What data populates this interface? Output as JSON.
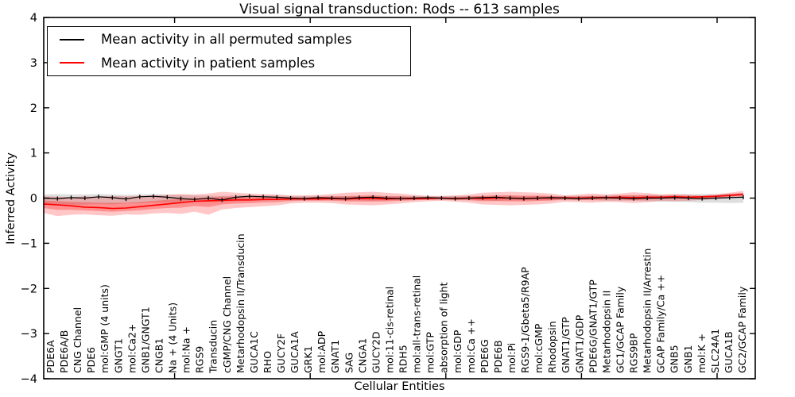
{
  "figure": {
    "title": "Visual signal transduction: Rods -- 613 samples",
    "xlabel": "Cellular Entities",
    "ylabel": "Inferred Activity"
  },
  "legend": {
    "items": [
      {
        "label": "Mean activity in all permuted samples",
        "color": "#000000"
      },
      {
        "label": "Mean activity in patient samples",
        "color": "#ff0000"
      }
    ]
  },
  "chart_data": {
    "type": "line",
    "title": "Visual signal transduction: Rods -- 613 samples",
    "xlabel": "Cellular Entities",
    "ylabel": "Inferred Activity",
    "ylim": [
      -4,
      4
    ],
    "yticks": [
      -4,
      -3,
      -2,
      -1,
      0,
      1,
      2,
      3,
      4
    ],
    "xtick_positions": [
      10,
      20,
      30,
      40,
      50
    ],
    "grid": false,
    "legend_position": "upper left",
    "categories": [
      "PDE6A",
      "PDE6A/B",
      "CNG Channel",
      "PDE6",
      "mol:GMP (4 units)",
      "GNGT1",
      "mol:Ca2+",
      "GNB1/GNGT1",
      "CNGB1",
      "Na + (4 Units)",
      "mol:Na +",
      "RGS9",
      "Transducin",
      "cGMP/CNG Channel",
      "Metarhodopsin II/Transducin",
      "GUCA1C",
      "RHO",
      "GUCY2F",
      "GUCA1A",
      "GRK1",
      "mol:ADP",
      "GNAT1",
      "SAG",
      "CNGA1",
      "GUCY2D",
      "mol:11-cis-retinal",
      "RDH5",
      "mol:all-trans-retinal",
      "mol:GTP",
      "absorption of light",
      "mol:GDP",
      "mol:Ca ++",
      "PDE6G",
      "PDE6B",
      "mol:Pi",
      "RGS9-1/Gbeta5/R9AP",
      "mol:cGMP",
      "Rhodopsin",
      "GNAT1/GTP",
      "GNAT1/GDP",
      "PDE6G/GNAT1/GTP",
      "Metarhodopsin II",
      "GC1/GCAP Family",
      "RGS9BP",
      "Metarhodopsin II/Arrestin",
      "GCAP Family/Ca ++",
      "GNB5",
      "GNB1",
      "mol:K +",
      "SLC24A1",
      "GUCA1B",
      "GC2/GCAP Family"
    ],
    "series": [
      {
        "name": "Mean activity in all permuted samples",
        "color": "#000000",
        "marker": "|",
        "values": [
          0.0,
          -0.01,
          0.01,
          0.0,
          0.03,
          0.01,
          -0.02,
          0.03,
          0.04,
          0.02,
          -0.01,
          -0.03,
          0.0,
          -0.04,
          0.02,
          0.04,
          0.03,
          0.02,
          0.0,
          -0.01,
          0.01,
          0.0,
          -0.01,
          0.01,
          0.02,
          0.0,
          -0.01,
          0.0,
          0.01,
          0.0,
          -0.01,
          0.0,
          0.01,
          0.02,
          0.0,
          -0.01,
          0.0,
          0.01,
          0.0,
          -0.01,
          0.0,
          0.01,
          0.0,
          -0.01,
          0.0,
          0.0,
          0.01,
          0.0,
          -0.01,
          0.0,
          0.01,
          0.02
        ]
      },
      {
        "name": "Mean activity in patient samples",
        "color": "#ff0000",
        "marker": "none",
        "values": [
          -0.13,
          -0.15,
          -0.17,
          -0.2,
          -0.21,
          -0.23,
          -0.22,
          -0.19,
          -0.16,
          -0.13,
          -0.1,
          -0.07,
          -0.06,
          -0.05,
          -0.04,
          -0.04,
          -0.03,
          -0.03,
          -0.02,
          -0.02,
          -0.02,
          -0.01,
          -0.02,
          -0.01,
          -0.01,
          -0.02,
          -0.01,
          -0.01,
          -0.01,
          0.0,
          -0.01,
          0.0,
          -0.01,
          0.0,
          0.0,
          -0.01,
          0.0,
          0.0,
          0.01,
          0.0,
          0.01,
          0.01,
          0.02,
          0.01,
          0.02,
          0.02,
          0.03,
          0.02,
          0.03,
          0.04,
          0.06,
          0.08
        ]
      }
    ],
    "bands": [
      {
        "name": "permuted-samples-range",
        "color": "#000000",
        "opacity": 0.13,
        "upper": [
          0.08,
          0.09,
          0.08,
          0.08,
          0.09,
          0.08,
          0.07,
          0.08,
          0.09,
          0.08,
          0.07,
          0.06,
          0.06,
          0.05,
          0.06,
          0.07,
          0.06,
          0.06,
          0.05,
          0.05,
          0.05,
          0.05,
          0.05,
          0.05,
          0.06,
          0.05,
          0.05,
          0.05,
          0.05,
          0.04,
          0.05,
          0.05,
          0.05,
          0.06,
          0.05,
          0.05,
          0.05,
          0.05,
          0.05,
          0.05,
          0.05,
          0.06,
          0.06,
          0.06,
          0.07,
          0.07,
          0.08,
          0.08,
          0.09,
          0.09,
          0.1,
          0.1
        ],
        "lower": [
          -0.14,
          -0.16,
          -0.15,
          -0.14,
          -0.13,
          -0.14,
          -0.12,
          -0.11,
          -0.1,
          -0.1,
          -0.09,
          -0.08,
          -0.08,
          -0.09,
          -0.07,
          -0.06,
          -0.06,
          -0.05,
          -0.05,
          -0.05,
          -0.05,
          -0.05,
          -0.05,
          -0.05,
          -0.06,
          -0.05,
          -0.05,
          -0.05,
          -0.04,
          -0.04,
          -0.05,
          -0.05,
          -0.05,
          -0.06,
          -0.05,
          -0.05,
          -0.05,
          -0.05,
          -0.05,
          -0.05,
          -0.05,
          -0.06,
          -0.06,
          -0.06,
          -0.07,
          -0.08,
          -0.08,
          -0.09,
          -0.1,
          -0.1,
          -0.11,
          -0.1
        ]
      },
      {
        "name": "patient-samples-range",
        "color": "#ff0000",
        "opacity": 0.22,
        "inner_band_scale": 0.45,
        "inner_band_extra_opacity": 0.28,
        "upper": [
          0.04,
          0.03,
          0.02,
          0.04,
          0.03,
          0.05,
          0.04,
          0.05,
          0.06,
          0.07,
          0.09,
          0.08,
          0.1,
          0.14,
          0.12,
          0.1,
          0.09,
          0.08,
          0.06,
          0.06,
          0.07,
          0.09,
          0.12,
          0.13,
          0.14,
          0.12,
          0.1,
          0.07,
          0.05,
          0.05,
          0.06,
          0.08,
          0.12,
          0.13,
          0.14,
          0.13,
          0.12,
          0.1,
          0.06,
          0.08,
          0.1,
          0.08,
          0.1,
          0.13,
          0.11,
          0.08,
          0.09,
          0.08,
          0.06,
          0.08,
          0.12,
          0.16
        ],
        "lower": [
          -0.33,
          -0.4,
          -0.37,
          -0.36,
          -0.38,
          -0.39,
          -0.36,
          -0.37,
          -0.34,
          -0.33,
          -0.35,
          -0.3,
          -0.37,
          -0.25,
          -0.22,
          -0.2,
          -0.18,
          -0.16,
          -0.12,
          -0.1,
          -0.1,
          -0.11,
          -0.14,
          -0.15,
          -0.16,
          -0.14,
          -0.12,
          -0.09,
          -0.07,
          -0.06,
          -0.08,
          -0.1,
          -0.14,
          -0.15,
          -0.16,
          -0.15,
          -0.14,
          -0.12,
          -0.08,
          -0.09,
          -0.1,
          -0.08,
          -0.09,
          -0.11,
          -0.09,
          -0.06,
          -0.07,
          -0.06,
          -0.04,
          -0.02,
          0.0,
          0.02
        ]
      }
    ]
  }
}
